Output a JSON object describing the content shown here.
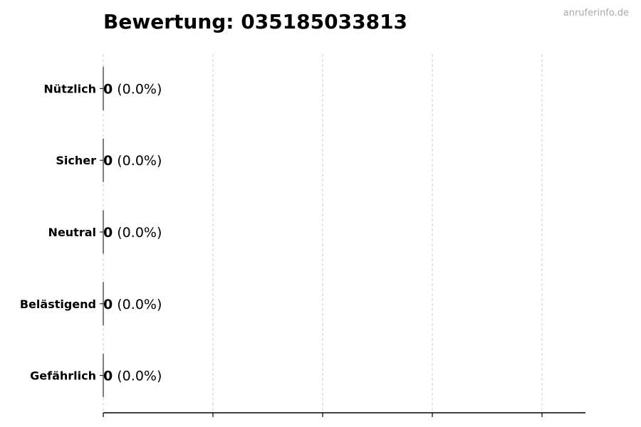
{
  "chart_data": {
    "type": "bar",
    "orientation": "horizontal",
    "title": "Bewertung: 035185033813",
    "watermark": "anruferinfo.de",
    "categories": [
      "Nützlich",
      "Sicher",
      "Neutral",
      "Belästigend",
      "Gefährlich"
    ],
    "values": [
      0,
      0,
      0,
      0,
      0
    ],
    "labels": [
      {
        "count": "0",
        "percent": "(0.0%)"
      },
      {
        "count": "0",
        "percent": "(0.0%)"
      },
      {
        "count": "0",
        "percent": "(0.0%)"
      },
      {
        "count": "0",
        "percent": "(0.0%)"
      },
      {
        "count": "0",
        "percent": "(0.0%)"
      }
    ],
    "xlabel": "",
    "ylabel": "",
    "grid": true,
    "grid_style": "dashed vertical",
    "colors": {
      "bar_edge": "#000000",
      "grid": "#cccccc",
      "watermark": "#aaaaaa"
    }
  }
}
